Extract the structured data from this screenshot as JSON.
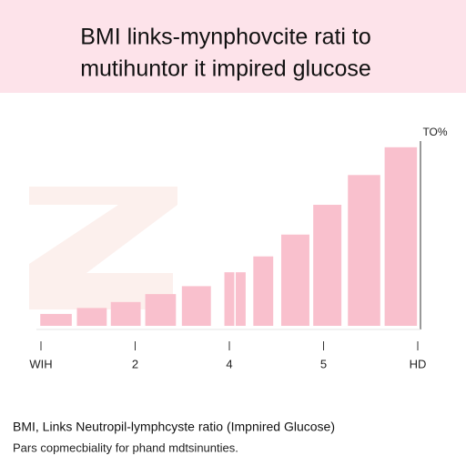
{
  "chart_data": {
    "type": "bar",
    "title": [
      "BMI links-mynphovcite rati to",
      "mutihuntor it impired glucose"
    ],
    "y_label": "TO%",
    "x": [
      0.16,
      0.54,
      0.9,
      1.27,
      1.65,
      2.0,
      2.12,
      2.36,
      2.7,
      3.04,
      3.43,
      3.82
    ],
    "values": [
      6,
      9,
      12,
      16,
      20,
      27,
      27,
      35,
      46,
      61,
      76,
      90
    ],
    "color": "#f9c0cd",
    "xlim": [
      0,
      4
    ],
    "xticks": [
      {
        "value": 0,
        "label": "WIH"
      },
      {
        "value": 1,
        "label": "2"
      },
      {
        "value": 2,
        "label": "4"
      },
      {
        "value": 3,
        "label": "5"
      },
      {
        "value": 4,
        "label": "HD"
      }
    ],
    "ylim": [
      0,
      100
    ],
    "caption": "BMI, Links Neutropil-lymphcyste ratio (Impnired Glucose)",
    "note": "Pars copmecbiality for phand mdtsinunties."
  }
}
